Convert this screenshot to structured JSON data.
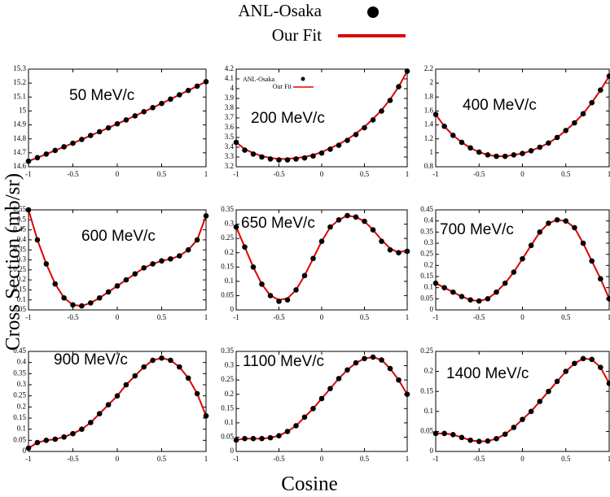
{
  "legend": {
    "entries": [
      {
        "name": "ANL-Osaka",
        "color": "#000000"
      },
      {
        "name": "Our Fit",
        "color": "#e00000"
      }
    ]
  },
  "xlabel": "Cosine",
  "ylabel": "Cross Section (mb/sr)",
  "chart_data": [
    {
      "type": "line",
      "annotation": "50 MeV/c",
      "x": [
        -1,
        -0.9,
        -0.8,
        -0.7,
        -0.6,
        -0.5,
        -0.4,
        -0.3,
        -0.2,
        -0.1,
        0,
        0.1,
        0.2,
        0.3,
        0.4,
        0.5,
        0.6,
        0.7,
        0.8,
        0.9,
        1
      ],
      "xlim": [
        -1,
        1
      ],
      "xticks": [
        -1,
        -0.5,
        0,
        0.5,
        1
      ],
      "ylim": [
        14.6,
        15.3
      ],
      "yticks": [
        14.6,
        14.7,
        14.8,
        14.9,
        15,
        15.1,
        15.2,
        15.3
      ],
      "series": [
        {
          "name": "ANL-Osaka",
          "color": "#000000",
          "values": [
            14.64,
            14.665,
            14.691,
            14.717,
            14.743,
            14.769,
            14.796,
            14.824,
            14.851,
            14.879,
            14.908,
            14.936,
            14.965,
            14.995,
            15.024,
            15.054,
            15.085,
            15.116,
            15.147,
            15.178,
            15.21
          ]
        },
        {
          "name": "Our Fit",
          "color": "#e00000",
          "values": [
            14.64,
            14.665,
            14.691,
            14.717,
            14.743,
            14.769,
            14.796,
            14.824,
            14.851,
            14.879,
            14.908,
            14.936,
            14.965,
            14.995,
            15.024,
            15.054,
            15.085,
            15.116,
            15.147,
            15.178,
            15.21
          ]
        }
      ]
    },
    {
      "type": "line",
      "annotation": "200 MeV/c",
      "legend": true,
      "x": [
        -1,
        -0.9,
        -0.8,
        -0.7,
        -0.6,
        -0.5,
        -0.4,
        -0.3,
        -0.2,
        -0.1,
        0,
        0.1,
        0.2,
        0.3,
        0.4,
        0.5,
        0.6,
        0.7,
        0.8,
        0.9,
        1
      ],
      "xlim": [
        -1,
        1
      ],
      "xticks": [
        -1,
        -0.5,
        0,
        0.5,
        1
      ],
      "ylim": [
        3.2,
        4.2
      ],
      "yticks": [
        3.2,
        3.3,
        3.4,
        3.5,
        3.6,
        3.7,
        3.8,
        3.9,
        4,
        4.1,
        4.2
      ],
      "series": [
        {
          "name": "ANL-Osaka",
          "color": "#000000",
          "values": [
            3.45,
            3.37,
            3.33,
            3.3,
            3.28,
            3.27,
            3.27,
            3.28,
            3.29,
            3.31,
            3.34,
            3.38,
            3.42,
            3.47,
            3.53,
            3.6,
            3.68,
            3.77,
            3.88,
            4.02,
            4.18
          ]
        },
        {
          "name": "Our Fit",
          "color": "#e00000",
          "values": [
            3.45,
            3.38,
            3.34,
            3.31,
            3.29,
            3.28,
            3.28,
            3.29,
            3.3,
            3.32,
            3.35,
            3.39,
            3.43,
            3.48,
            3.54,
            3.61,
            3.69,
            3.78,
            3.89,
            4.02,
            4.18
          ]
        }
      ]
    },
    {
      "type": "line",
      "annotation": "400 MeV/c",
      "x": [
        -1,
        -0.9,
        -0.8,
        -0.7,
        -0.6,
        -0.5,
        -0.4,
        -0.3,
        -0.2,
        -0.1,
        0,
        0.1,
        0.2,
        0.3,
        0.4,
        0.5,
        0.6,
        0.7,
        0.8,
        0.9,
        1
      ],
      "xlim": [
        -1,
        1
      ],
      "xticks": [
        -1,
        -0.5,
        0,
        0.5,
        1
      ],
      "ylim": [
        0.8,
        2.2
      ],
      "yticks": [
        0.8,
        1,
        1.2,
        1.4,
        1.6,
        1.8,
        2,
        2.2
      ],
      "series": [
        {
          "name": "ANL-Osaka",
          "color": "#000000",
          "values": [
            1.55,
            1.38,
            1.25,
            1.15,
            1.07,
            1.01,
            0.97,
            0.95,
            0.95,
            0.97,
            0.99,
            1.03,
            1.08,
            1.14,
            1.22,
            1.32,
            1.43,
            1.56,
            1.72,
            1.9,
            2.1
          ]
        },
        {
          "name": "Our Fit",
          "color": "#e00000",
          "values": [
            1.55,
            1.38,
            1.25,
            1.15,
            1.07,
            1.01,
            0.97,
            0.95,
            0.95,
            0.97,
            0.99,
            1.03,
            1.08,
            1.14,
            1.22,
            1.32,
            1.43,
            1.56,
            1.72,
            1.9,
            2.1
          ]
        }
      ]
    },
    {
      "type": "line",
      "annotation": "600 MeV/c",
      "x": [
        -1,
        -0.9,
        -0.8,
        -0.7,
        -0.6,
        -0.5,
        -0.4,
        -0.3,
        -0.2,
        -0.1,
        0,
        0.1,
        0.2,
        0.3,
        0.4,
        0.5,
        0.6,
        0.7,
        0.8,
        0.9,
        1
      ],
      "xlim": [
        -1,
        1
      ],
      "xticks": [
        -1,
        -0.5,
        0,
        0.5,
        1
      ],
      "ylim": [
        0.05,
        0.55
      ],
      "yticks": [
        0.05,
        0.1,
        0.15,
        0.2,
        0.25,
        0.3,
        0.35,
        0.4,
        0.45,
        0.5,
        0.55
      ],
      "series": [
        {
          "name": "ANL-Osaka",
          "color": "#000000",
          "values": [
            0.55,
            0.4,
            0.28,
            0.18,
            0.11,
            0.075,
            0.07,
            0.085,
            0.11,
            0.14,
            0.17,
            0.2,
            0.23,
            0.26,
            0.28,
            0.295,
            0.305,
            0.32,
            0.35,
            0.4,
            0.52
          ]
        },
        {
          "name": "Our Fit",
          "color": "#e00000",
          "values": [
            0.55,
            0.4,
            0.28,
            0.18,
            0.11,
            0.075,
            0.07,
            0.085,
            0.11,
            0.14,
            0.17,
            0.2,
            0.23,
            0.26,
            0.28,
            0.295,
            0.305,
            0.32,
            0.35,
            0.4,
            0.52
          ]
        }
      ]
    },
    {
      "type": "line",
      "annotation": "650 MeV/c",
      "x": [
        -1,
        -0.9,
        -0.8,
        -0.7,
        -0.6,
        -0.5,
        -0.4,
        -0.3,
        -0.2,
        -0.1,
        0,
        0.1,
        0.2,
        0.3,
        0.4,
        0.5,
        0.6,
        0.7,
        0.8,
        0.9,
        1
      ],
      "xlim": [
        -1,
        1
      ],
      "xticks": [
        -1,
        -0.5,
        0,
        0.5,
        1
      ],
      "ylim": [
        0,
        0.35
      ],
      "yticks": [
        0,
        0.05,
        0.1,
        0.15,
        0.2,
        0.25,
        0.3,
        0.35
      ],
      "series": [
        {
          "name": "ANL-Osaka",
          "color": "#000000",
          "values": [
            0.29,
            0.22,
            0.15,
            0.09,
            0.05,
            0.03,
            0.035,
            0.07,
            0.12,
            0.18,
            0.24,
            0.29,
            0.315,
            0.33,
            0.325,
            0.31,
            0.28,
            0.24,
            0.21,
            0.2,
            0.205
          ]
        },
        {
          "name": "Our Fit",
          "color": "#e00000",
          "values": [
            0.29,
            0.22,
            0.15,
            0.09,
            0.05,
            0.035,
            0.04,
            0.07,
            0.12,
            0.18,
            0.24,
            0.29,
            0.315,
            0.33,
            0.325,
            0.31,
            0.28,
            0.245,
            0.215,
            0.2,
            0.21
          ]
        }
      ]
    },
    {
      "type": "line",
      "annotation": "700 MeV/c",
      "x": [
        -1,
        -0.9,
        -0.8,
        -0.7,
        -0.6,
        -0.5,
        -0.4,
        -0.3,
        -0.2,
        -0.1,
        0,
        0.1,
        0.2,
        0.3,
        0.4,
        0.5,
        0.6,
        0.7,
        0.8,
        0.9,
        1
      ],
      "xlim": [
        -1,
        1
      ],
      "xticks": [
        -1,
        -0.5,
        0,
        0.5,
        1
      ],
      "ylim": [
        0,
        0.45
      ],
      "yticks": [
        0,
        0.05,
        0.1,
        0.15,
        0.2,
        0.25,
        0.3,
        0.35,
        0.4,
        0.45
      ],
      "series": [
        {
          "name": "ANL-Osaka",
          "color": "#000000",
          "values": [
            0.12,
            0.1,
            0.08,
            0.06,
            0.045,
            0.04,
            0.05,
            0.08,
            0.12,
            0.17,
            0.23,
            0.29,
            0.35,
            0.39,
            0.405,
            0.4,
            0.37,
            0.3,
            0.22,
            0.14,
            0.05
          ]
        },
        {
          "name": "Our Fit",
          "color": "#e00000",
          "values": [
            0.12,
            0.1,
            0.08,
            0.06,
            0.045,
            0.04,
            0.05,
            0.08,
            0.12,
            0.17,
            0.23,
            0.29,
            0.35,
            0.39,
            0.405,
            0.4,
            0.37,
            0.3,
            0.22,
            0.14,
            0.05
          ]
        }
      ]
    },
    {
      "type": "line",
      "annotation": "900 MeV/c",
      "x": [
        -1,
        -0.9,
        -0.8,
        -0.7,
        -0.6,
        -0.5,
        -0.4,
        -0.3,
        -0.2,
        -0.1,
        0,
        0.1,
        0.2,
        0.3,
        0.4,
        0.5,
        0.6,
        0.7,
        0.8,
        0.9,
        1
      ],
      "xlim": [
        -1,
        1
      ],
      "xticks": [
        -1,
        -0.5,
        0,
        0.5,
        1
      ],
      "ylim": [
        0,
        0.45
      ],
      "yticks": [
        0,
        0.05,
        0.1,
        0.15,
        0.2,
        0.25,
        0.3,
        0.35,
        0.4,
        0.45
      ],
      "series": [
        {
          "name": "ANL-Osaka",
          "color": "#000000",
          "values": [
            0.015,
            0.04,
            0.05,
            0.055,
            0.065,
            0.08,
            0.1,
            0.13,
            0.17,
            0.21,
            0.25,
            0.3,
            0.34,
            0.38,
            0.41,
            0.42,
            0.41,
            0.38,
            0.33,
            0.26,
            0.16
          ]
        },
        {
          "name": "Our Fit",
          "color": "#e00000",
          "values": [
            0.015,
            0.04,
            0.05,
            0.055,
            0.065,
            0.08,
            0.1,
            0.13,
            0.17,
            0.21,
            0.25,
            0.3,
            0.34,
            0.38,
            0.41,
            0.42,
            0.41,
            0.38,
            0.33,
            0.26,
            0.16
          ]
        }
      ]
    },
    {
      "type": "line",
      "annotation": "1100 MeV/c",
      "x": [
        -1,
        -0.9,
        -0.8,
        -0.7,
        -0.6,
        -0.5,
        -0.4,
        -0.3,
        -0.2,
        -0.1,
        0,
        0.1,
        0.2,
        0.3,
        0.4,
        0.5,
        0.6,
        0.7,
        0.8,
        0.9,
        1
      ],
      "xlim": [
        -1,
        1
      ],
      "xticks": [
        -1,
        -0.5,
        0,
        0.5,
        1
      ],
      "ylim": [
        0,
        0.35
      ],
      "yticks": [
        0,
        0.05,
        0.1,
        0.15,
        0.2,
        0.25,
        0.3,
        0.35
      ],
      "series": [
        {
          "name": "ANL-Osaka",
          "color": "#000000",
          "values": [
            0.04,
            0.045,
            0.045,
            0.045,
            0.048,
            0.055,
            0.07,
            0.09,
            0.12,
            0.15,
            0.185,
            0.22,
            0.255,
            0.285,
            0.31,
            0.325,
            0.33,
            0.32,
            0.29,
            0.25,
            0.2
          ]
        },
        {
          "name": "Our Fit",
          "color": "#e00000",
          "values": [
            0.04,
            0.045,
            0.045,
            0.045,
            0.048,
            0.055,
            0.07,
            0.09,
            0.12,
            0.15,
            0.185,
            0.22,
            0.255,
            0.285,
            0.31,
            0.325,
            0.33,
            0.32,
            0.29,
            0.25,
            0.2
          ]
        }
      ]
    },
    {
      "type": "line",
      "annotation": "1400 MeV/c",
      "x": [
        -1,
        -0.9,
        -0.8,
        -0.7,
        -0.6,
        -0.5,
        -0.4,
        -0.3,
        -0.2,
        -0.1,
        0,
        0.1,
        0.2,
        0.3,
        0.4,
        0.5,
        0.6,
        0.7,
        0.8,
        0.9,
        1
      ],
      "xlim": [
        -1,
        1
      ],
      "xticks": [
        -1,
        -0.5,
        0,
        0.5,
        1
      ],
      "ylim": [
        0,
        0.25
      ],
      "yticks": [
        0,
        0.05,
        0.1,
        0.15,
        0.2,
        0.25
      ],
      "series": [
        {
          "name": "ANL-Osaka",
          "color": "#000000",
          "values": [
            0.045,
            0.045,
            0.042,
            0.035,
            0.028,
            0.025,
            0.026,
            0.032,
            0.043,
            0.06,
            0.08,
            0.1,
            0.125,
            0.15,
            0.175,
            0.2,
            0.22,
            0.232,
            0.23,
            0.21,
            0.17
          ]
        },
        {
          "name": "Our Fit",
          "color": "#e00000",
          "values": [
            0.045,
            0.045,
            0.042,
            0.035,
            0.028,
            0.025,
            0.026,
            0.032,
            0.043,
            0.06,
            0.08,
            0.1,
            0.125,
            0.15,
            0.175,
            0.2,
            0.22,
            0.232,
            0.23,
            0.21,
            0.17
          ]
        }
      ]
    }
  ]
}
